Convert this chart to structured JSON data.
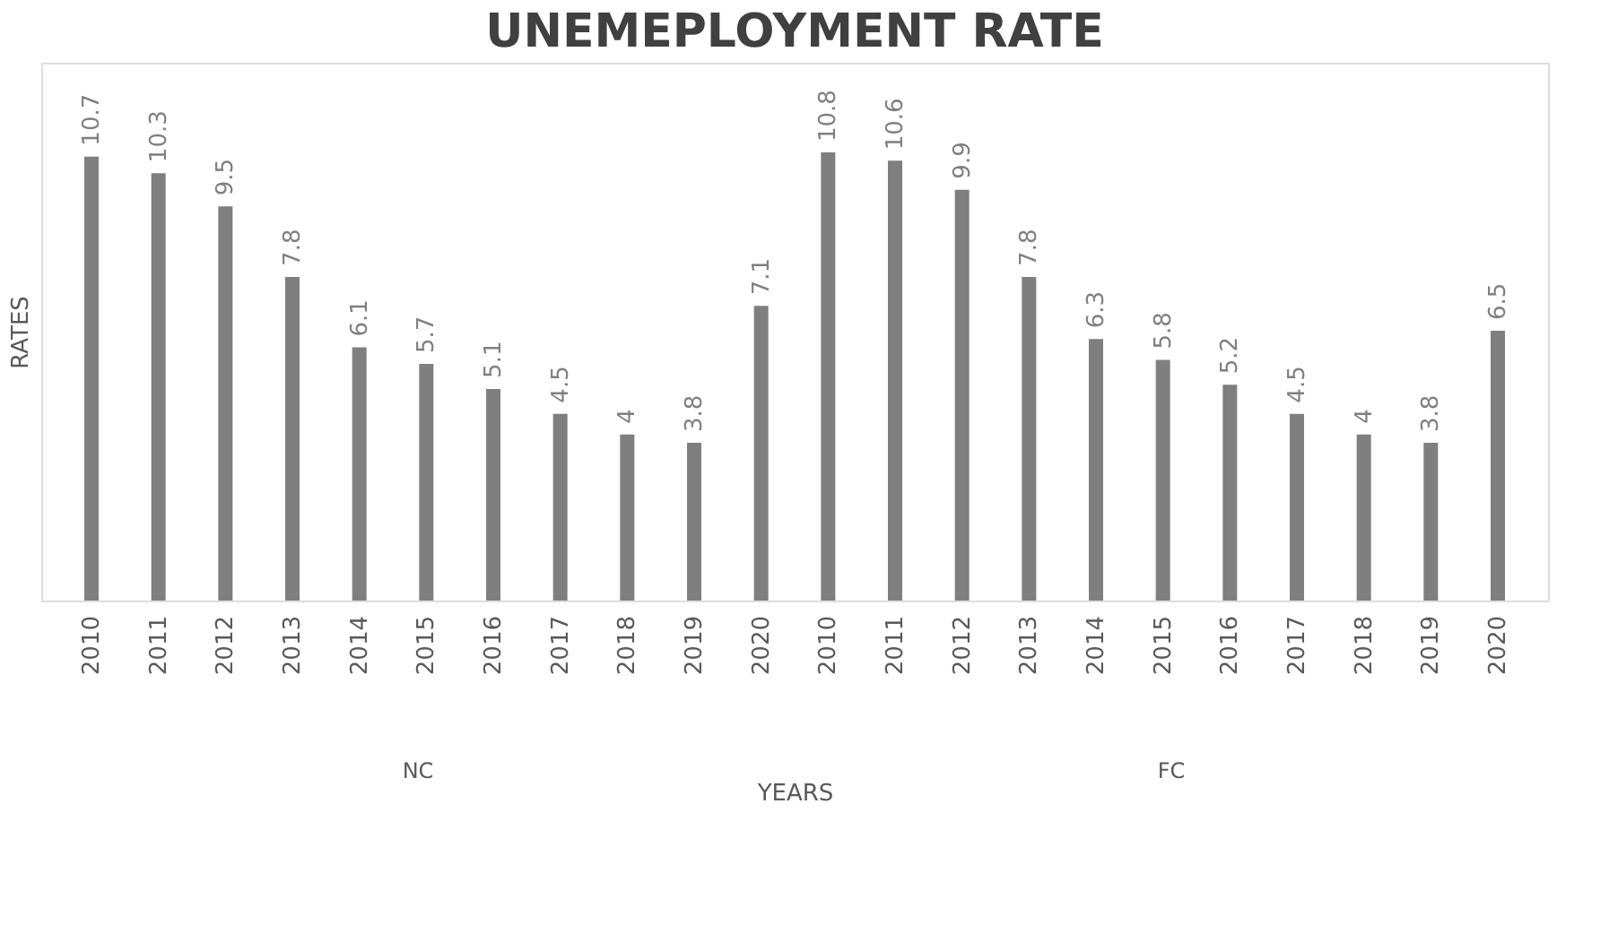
{
  "chart_data": {
    "type": "bar",
    "title": "UNEMEPLOYMENT RATE",
    "xlabel": "YEARS",
    "ylabel": "RATES",
    "categories": [
      "2010",
      "2011",
      "2012",
      "2013",
      "2014",
      "2015",
      "2016",
      "2017",
      "2018",
      "2019",
      "2020",
      "2010",
      "2011",
      "2012",
      "2013",
      "2014",
      "2015",
      "2016",
      "2017",
      "2018",
      "2019",
      "2020"
    ],
    "values": [
      10.7,
      10.3,
      9.5,
      7.8,
      6.1,
      5.7,
      5.1,
      4.5,
      4,
      3.8,
      7.1,
      10.8,
      10.6,
      9.9,
      7.8,
      6.3,
      5.8,
      5.2,
      4.5,
      4,
      3.8,
      6.5
    ],
    "color": "#7f7f7f",
    "data_labels": true,
    "grid": false,
    "tick_labels": "x",
    "annotations": [
      "NC",
      "FC"
    ]
  }
}
